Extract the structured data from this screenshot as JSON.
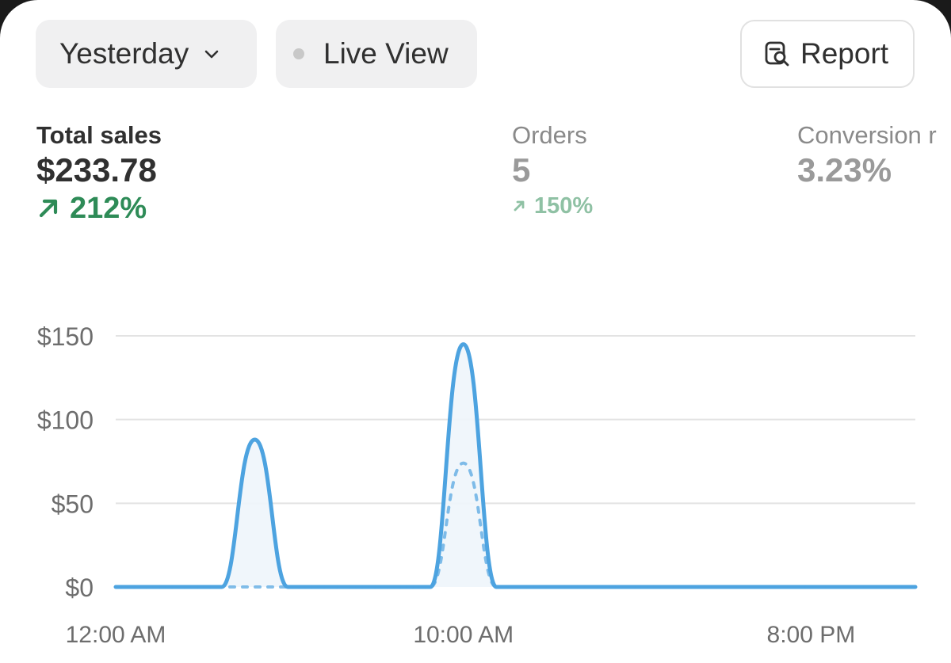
{
  "toolbar": {
    "date_label": "Yesterday",
    "live_label": "Live View",
    "report_label": "Report"
  },
  "metrics": {
    "total_sales": {
      "label": "Total sales",
      "value": "$233.78",
      "change": "212%"
    },
    "orders": {
      "label": "Orders",
      "value": "5",
      "change": "150%"
    },
    "conversion": {
      "label": "Conversion r",
      "value": "3.23%"
    }
  },
  "icons": {
    "date": "chevron-down-icon",
    "live": "live-dot-icon",
    "report": "report-search-icon",
    "change_up": "arrow-up-right-icon"
  },
  "colors": {
    "series_line": "#4da3e0",
    "positive": "#2e8b57",
    "positive_muted": "#8fc1a4",
    "grid": "#e3e3e3"
  },
  "chart_data": {
    "type": "line",
    "x": [
      "12:00 AM",
      "1:00 AM",
      "2:00 AM",
      "3:00 AM",
      "4:00 AM",
      "5:00 AM",
      "6:00 AM",
      "7:00 AM",
      "8:00 AM",
      "9:00 AM",
      "10:00 AM",
      "11:00 AM",
      "12:00 PM",
      "1:00 PM",
      "2:00 PM",
      "3:00 PM",
      "4:00 PM",
      "5:00 PM",
      "6:00 PM",
      "7:00 PM",
      "8:00 PM",
      "9:00 PM",
      "10:00 PM",
      "11:00 PM"
    ],
    "xticks": [
      "12:00 AM",
      "10:00 AM",
      "8:00 PM"
    ],
    "yticks": [
      "$0",
      "$50",
      "$100",
      "$150"
    ],
    "ylim": [
      0,
      150
    ],
    "grid": true,
    "series": [
      {
        "values": [
          0,
          0,
          0,
          0,
          88,
          0,
          0,
          0,
          0,
          0,
          145,
          0,
          0,
          0,
          0,
          0,
          0,
          0,
          0,
          0,
          0,
          0,
          0,
          0
        ],
        "style": "solid"
      },
      {
        "values": [
          0,
          0,
          0,
          0,
          0,
          0,
          0,
          0,
          0,
          0,
          74,
          0,
          0,
          0,
          0,
          0,
          0,
          0,
          0,
          0,
          0,
          0,
          0,
          0
        ],
        "style": "dashed"
      }
    ]
  }
}
